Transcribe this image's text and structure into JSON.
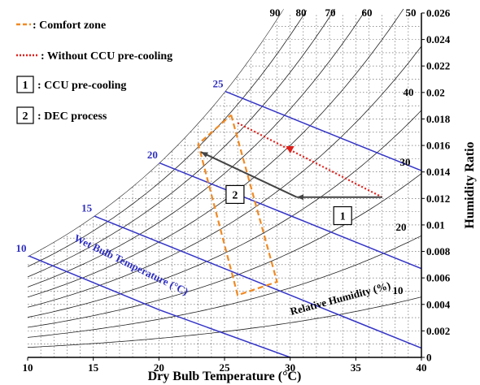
{
  "chart_data": {
    "type": "line",
    "xlabel": "Dry Bulb Temperature (°C)",
    "ylabel": "Humidity Ratio",
    "xlim": [
      10,
      40
    ],
    "ylim": [
      0,
      0.026
    ],
    "x_ticks": [
      "10",
      "15",
      "20",
      "25",
      "30",
      "35",
      "40"
    ],
    "y_ticks": [
      "0",
      "0.002",
      "0.004",
      "0.006",
      "0.008",
      "0.01",
      "0.012",
      "0.014",
      "0.016",
      "0.018",
      "0.02",
      "0.022",
      "0.024",
      "0.026"
    ],
    "grid": "dotted",
    "relative_humidity": {
      "label": "Relative Humidity (%)",
      "curves": [
        10,
        20,
        30,
        40,
        50,
        60,
        70,
        80,
        90,
        100
      ],
      "labeled": [
        {
          "rh": 10,
          "text": "10"
        },
        {
          "rh": 20,
          "text": "20"
        },
        {
          "rh": 30,
          "text": "30"
        },
        {
          "rh": 40,
          "text": "40"
        },
        {
          "rh": 50,
          "text": "50"
        },
        {
          "rh": 60,
          "text": "60"
        },
        {
          "rh": 70,
          "text": "70"
        },
        {
          "rh": 80,
          "text": "80"
        },
        {
          "rh": 90,
          "text": "90"
        }
      ]
    },
    "wet_bulb": {
      "label": "Wet Bulb Temperature (°C)",
      "lines": [
        {
          "twb": 10,
          "text": "10",
          "points": [
            [
              10,
              0.0077
            ],
            [
              20,
              0.0036
            ],
            [
              30,
              0.0
            ]
          ]
        },
        {
          "twb": 15,
          "text": "15",
          "points": [
            [
              15,
              0.0107
            ],
            [
              25,
              0.0067
            ],
            [
              35,
              0.0027
            ],
            [
              40,
              0.0007
            ]
          ]
        },
        {
          "twb": 20,
          "text": "20",
          "points": [
            [
              20,
              0.0147
            ],
            [
              30,
              0.0107
            ],
            [
              40,
              0.0067
            ]
          ]
        },
        {
          "twb": 25,
          "text": "25",
          "points": [
            [
              25,
              0.0201
            ],
            [
              30,
              0.0181
            ],
            [
              40,
              0.0141
            ]
          ]
        }
      ]
    },
    "series": [
      {
        "name": "Comfort zone",
        "style": "dashed",
        "color": "#f08a24",
        "points": [
          [
            25.5,
            0.0183
          ],
          [
            29.0,
            0.0057
          ],
          [
            26.0,
            0.0047
          ],
          [
            23.0,
            0.0161
          ],
          [
            25.5,
            0.0183
          ]
        ]
      },
      {
        "name": "Without CCU pre-cooling",
        "style": "dotted",
        "color": "#e0201b",
        "points": [
          [
            26.0,
            0.0177
          ],
          [
            37.0,
            0.0121
          ]
        ],
        "marker": {
          "x": 30.0,
          "y": 0.0157
        }
      },
      {
        "name": "CCU pre-cooling",
        "style": "solid",
        "color": "#444444",
        "points": [
          [
            37.0,
            0.0121
          ],
          [
            30.5,
            0.0121
          ]
        ]
      },
      {
        "name": "DEC process",
        "style": "solid",
        "color": "#444444",
        "points": [
          [
            30.5,
            0.0121
          ],
          [
            23.2,
            0.0155
          ]
        ]
      }
    ],
    "process_markers": [
      {
        "text": "1",
        "x": 34.0,
        "y": 0.0107
      },
      {
        "text": "2",
        "x": 25.8,
        "y": 0.0123
      }
    ],
    "legend": {
      "position": "top-left",
      "items": [
        {
          "marker": "dashed",
          "color": "#f08a24",
          "text": ": Comfort zone"
        },
        {
          "marker": "dotted",
          "color": "#e0201b",
          "text": ": Without CCU pre-cooling"
        },
        {
          "marker": "box",
          "box": "1",
          "text": ": CCU pre-cooling"
        },
        {
          "marker": "box",
          "box": "2",
          "text": ": DEC process"
        }
      ]
    }
  }
}
